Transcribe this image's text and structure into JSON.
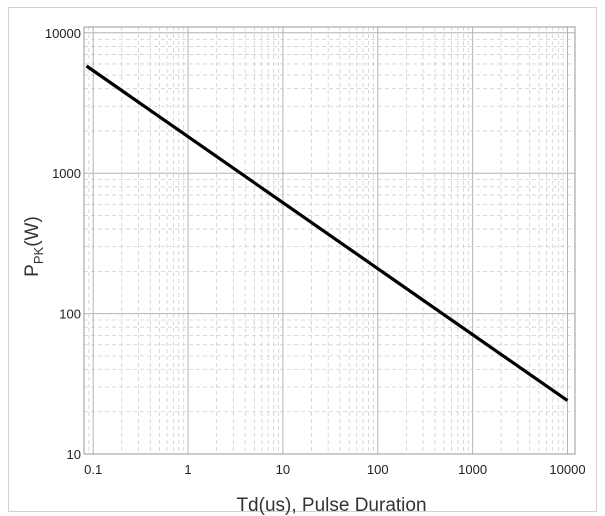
{
  "chart_data": {
    "type": "line",
    "title": "",
    "xlabel": "Td(us), Pulse Duration",
    "ylabel": {
      "main": "P",
      "sub": "PK",
      "suffix": "(W)"
    },
    "xscale": "log",
    "yscale": "log",
    "xlim": [
      0.08,
      12000
    ],
    "ylim": [
      10,
      11000
    ],
    "xticks": [
      0.1,
      1,
      10,
      100,
      1000,
      10000
    ],
    "xtick_labels": [
      "0.1",
      "1",
      "10",
      "100",
      "1000",
      "10000"
    ],
    "yticks": [
      10,
      100,
      1000,
      10000
    ],
    "ytick_labels": [
      "10",
      "100",
      "1000",
      "10000"
    ],
    "grid": true,
    "legend": "none",
    "series": [
      {
        "x": [
          0.085,
          10000
        ],
        "y": [
          5800,
          24
        ],
        "color": "#000000"
      }
    ]
  }
}
